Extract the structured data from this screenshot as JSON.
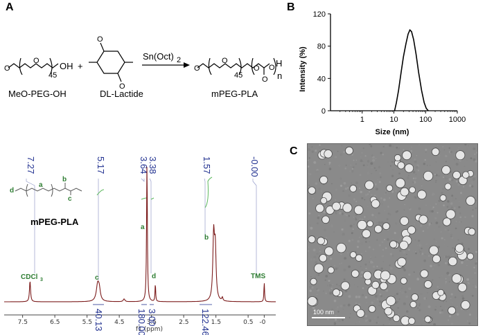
{
  "panels": {
    "a": "A",
    "b": "B",
    "c": "C"
  },
  "scheme": {
    "reactant1_name": "MeO-PEG-OH",
    "reactant2_name": "DL-Lactide",
    "product_name": "mPEG-PLA",
    "catalyst": "Sn(Oct)",
    "catalyst_sub": "2",
    "plus": "+",
    "peg_repeat": "45",
    "pla_repeat": "n",
    "oh": "OH",
    "h": "H"
  },
  "nmr": {
    "peak_labels": [
      "7.27",
      "5.17",
      "3.64",
      "3.38",
      "1.57",
      "-0.00"
    ],
    "integrals": [
      "40.13",
      "180.00",
      "3.00",
      "122.46"
    ],
    "x_ticks": [
      "7.5",
      "6.5",
      "5.5",
      "4.5",
      "3.5",
      "2.5",
      "1.5",
      "0.5",
      "-0"
    ],
    "x_label": "f1 (ppm)",
    "annotations": {
      "cdcl3": "CDCl",
      "cdcl3_sub": "3",
      "c": "c",
      "a": "a",
      "d": "d",
      "b": "b",
      "tms": "TMS"
    },
    "structure_labels": [
      "d",
      "a",
      "b",
      "c"
    ],
    "compound": "mPEG-PLA",
    "line_color": "#7b1a1a"
  },
  "chart_data": {
    "type": "line",
    "title": "",
    "xlabel": "Size (nm)",
    "ylabel": "Intensity (%)",
    "x_scale": "log",
    "xlim": [
      0.1,
      1000
    ],
    "ylim": [
      0,
      120
    ],
    "x_ticks": [
      "1",
      "10",
      "100",
      "1000"
    ],
    "y_ticks": [
      "0",
      "40",
      "80",
      "120"
    ],
    "x": [
      10.5,
      12,
      14,
      17,
      20,
      24,
      28,
      32,
      36,
      42,
      50,
      60,
      75,
      90,
      105,
      122
    ],
    "values": [
      0,
      10,
      25,
      48,
      67,
      83,
      95,
      100,
      98,
      88,
      70,
      48,
      25,
      10,
      3,
      0
    ]
  },
  "tem": {
    "scale_label": "100 nm"
  }
}
